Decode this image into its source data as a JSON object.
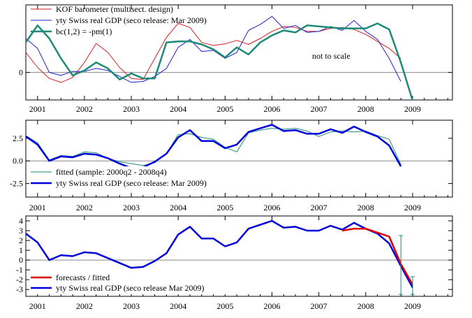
{
  "chart_data": [
    {
      "type": "line",
      "annotation": "not to scale",
      "x_ticks": [
        "2001",
        "2002",
        "2003",
        "2004",
        "2005",
        "2006",
        "2007",
        "2008",
        "2009"
      ],
      "y_ticks": [
        "0"
      ],
      "ylim": [
        -0.55,
        1.35
      ],
      "zero_line": true,
      "legend": {
        "placement": "top-left"
      },
      "colors": {
        "kof": "#d42020",
        "gdp": "#2222cc",
        "bc": "#1f8a78"
      },
      "series": [
        {
          "name": "KOF barometer (multisect. design)",
          "x": [
            2000.75,
            2001.0,
            2001.25,
            2001.5,
            2001.75,
            2002.0,
            2002.25,
            2002.5,
            2002.75,
            2003.0,
            2003.25,
            2003.5,
            2003.75,
            2004.0,
            2004.25,
            2004.5,
            2004.75,
            2005.0,
            2005.25,
            2005.5,
            2005.75,
            2006.0,
            2006.25,
            2006.5,
            2006.75,
            2007.0,
            2007.25,
            2007.5,
            2007.75,
            2008.0,
            2008.25,
            2008.5,
            2008.75
          ],
          "values": [
            0.4,
            0.1,
            -0.12,
            -0.2,
            -0.1,
            0.2,
            0.58,
            0.4,
            0.1,
            -0.12,
            -0.14,
            0.28,
            0.7,
            0.98,
            0.9,
            0.6,
            0.54,
            0.57,
            0.64,
            0.56,
            0.68,
            0.82,
            0.92,
            0.9,
            0.82,
            0.82,
            0.88,
            0.9,
            0.86,
            0.76,
            0.62,
            0.48,
            0.28
          ]
        },
        {
          "name": "yty Swiss real GDP (seco release: Mar 2009)",
          "x": [
            2000.75,
            2001.0,
            2001.25,
            2001.5,
            2001.75,
            2002.0,
            2002.25,
            2002.5,
            2002.75,
            2003.0,
            2003.25,
            2003.5,
            2003.75,
            2004.0,
            2004.25,
            2004.5,
            2004.75,
            2005.0,
            2005.25,
            2005.5,
            2005.75,
            2006.0,
            2006.25,
            2006.5,
            2006.75,
            2007.0,
            2007.25,
            2007.5,
            2007.75,
            2008.0,
            2008.25,
            2008.5,
            2008.75
          ],
          "values": [
            0.68,
            0.48,
            0.0,
            -0.06,
            0.02,
            0.02,
            0.08,
            0.04,
            -0.08,
            -0.2,
            -0.18,
            -0.08,
            0.08,
            0.5,
            0.66,
            0.42,
            0.44,
            0.28,
            0.4,
            0.84,
            0.96,
            1.12,
            0.88,
            0.94,
            0.8,
            0.82,
            0.92,
            0.84,
            1.04,
            0.82,
            0.66,
            0.28,
            -0.18
          ]
        },
        {
          "name": "bc(1,2) = -pm(1)",
          "x": [
            2000.75,
            2001.0,
            2001.25,
            2001.5,
            2001.75,
            2002.0,
            2002.25,
            2002.5,
            2002.75,
            2003.0,
            2003.25,
            2003.5,
            2003.75,
            2004.0,
            2004.25,
            2004.5,
            2004.75,
            2005.0,
            2005.25,
            2005.5,
            2005.75,
            2006.0,
            2006.25,
            2006.5,
            2006.75,
            2007.0,
            2007.25,
            2007.5,
            2007.75,
            2008.0,
            2008.25,
            2008.5,
            2008.75,
            2009.0
          ],
          "values": [
            0.6,
            0.94,
            0.68,
            0.28,
            -0.06,
            0.04,
            0.2,
            0.08,
            -0.14,
            -0.02,
            -0.12,
            -0.12,
            0.6,
            0.62,
            0.62,
            0.56,
            0.46,
            0.3,
            0.5,
            0.36,
            0.6,
            0.74,
            0.84,
            0.8,
            0.94,
            0.92,
            0.9,
            0.88,
            0.88,
            0.88,
            0.98,
            0.86,
            0.2,
            -0.56
          ]
        }
      ]
    },
    {
      "type": "line",
      "x_ticks": [
        "2001",
        "2002",
        "2003",
        "2004",
        "2005",
        "2006",
        "2007",
        "2008",
        "2009"
      ],
      "y_ticks": [
        "2.5",
        "0.0",
        "-2.5"
      ],
      "ylim": [
        -4.0,
        4.5
      ],
      "zero_line": true,
      "legend": {
        "placement": "bottom-left"
      },
      "colors": {
        "fitted": "#1f8a78",
        "gdp": "#0000dd"
      },
      "series": [
        {
          "name": "fitted (sample: 2000q2 - 2008q4)",
          "x": [
            2000.75,
            2001.0,
            2001.25,
            2001.5,
            2001.75,
            2002.0,
            2002.25,
            2002.5,
            2002.75,
            2003.0,
            2003.25,
            2003.5,
            2003.75,
            2004.0,
            2004.25,
            2004.5,
            2004.75,
            2005.0,
            2005.25,
            2005.5,
            2005.75,
            2006.0,
            2006.25,
            2006.5,
            2006.75,
            2007.0,
            2007.25,
            2007.5,
            2007.75,
            2008.0,
            2008.25,
            2008.5,
            2008.75
          ],
          "values": [
            2.8,
            2.0,
            0.1,
            0.6,
            0.5,
            1.0,
            0.9,
            0.3,
            -0.1,
            -0.3,
            -0.5,
            -0.2,
            0.8,
            2.9,
            3.0,
            2.6,
            2.4,
            1.5,
            1.0,
            3.1,
            3.4,
            3.6,
            3.5,
            3.6,
            3.3,
            2.7,
            3.2,
            3.3,
            3.2,
            3.3,
            2.8,
            2.4,
            -0.4
          ]
        },
        {
          "name": "yty Swiss real GDP (seco release: Mar 2009)",
          "x": [
            2000.75,
            2001.0,
            2001.25,
            2001.5,
            2001.75,
            2002.0,
            2002.25,
            2002.5,
            2002.75,
            2003.0,
            2003.25,
            2003.5,
            2003.75,
            2004.0,
            2004.25,
            2004.5,
            2004.75,
            2005.0,
            2005.25,
            2005.5,
            2005.75,
            2006.0,
            2006.25,
            2006.5,
            2006.75,
            2007.0,
            2007.25,
            2007.5,
            2007.75,
            2008.0,
            2008.25,
            2008.5,
            2008.75
          ],
          "values": [
            2.7,
            1.8,
            0.0,
            0.5,
            0.4,
            0.8,
            0.7,
            0.3,
            -0.3,
            -0.8,
            -0.7,
            -0.1,
            0.8,
            2.6,
            3.4,
            2.2,
            2.2,
            1.4,
            1.8,
            3.2,
            3.6,
            4.0,
            3.3,
            3.4,
            3.0,
            3.0,
            3.5,
            3.1,
            3.8,
            3.2,
            2.7,
            1.7,
            -0.6
          ]
        }
      ]
    },
    {
      "type": "line",
      "x_ticks": [
        "2001",
        "2002",
        "2003",
        "2004",
        "2005",
        "2006",
        "2007",
        "2008",
        "2009"
      ],
      "y_ticks": [
        "4",
        "3",
        "2",
        "1",
        "0",
        "-1",
        "-2",
        "-3"
      ],
      "ylim": [
        -3.7,
        4.5
      ],
      "zero_line": true,
      "legend": {
        "placement": "bottom-left"
      },
      "colors": {
        "forecast": "#dd0000",
        "gdp": "#0000dd",
        "band": "#1f8a78"
      },
      "error_bars": [
        {
          "x": 2008.75,
          "low": -3.5,
          "high": 2.5
        },
        {
          "x": 2009.0,
          "low": -3.5,
          "high": -1.7
        }
      ],
      "series": [
        {
          "name": "forecasts / fitted",
          "x": [
            2007.5,
            2007.75,
            2008.0,
            2008.25,
            2008.5,
            2008.75,
            2009.0
          ],
          "values": [
            3.0,
            3.2,
            3.2,
            2.8,
            2.4,
            -0.4,
            -2.5
          ]
        },
        {
          "name": "yty Swiss real GDP (seco release Mar 2009)",
          "x": [
            2000.75,
            2001.0,
            2001.25,
            2001.5,
            2001.75,
            2002.0,
            2002.25,
            2002.5,
            2002.75,
            2003.0,
            2003.25,
            2003.5,
            2003.75,
            2004.0,
            2004.25,
            2004.5,
            2004.75,
            2005.0,
            2005.25,
            2005.5,
            2005.75,
            2006.0,
            2006.25,
            2006.5,
            2006.75,
            2007.0,
            2007.25,
            2007.5,
            2007.75,
            2008.0,
            2008.25,
            2008.5,
            2008.75,
            2009.0
          ],
          "values": [
            2.7,
            1.8,
            0.0,
            0.5,
            0.4,
            0.8,
            0.7,
            0.2,
            -0.3,
            -0.8,
            -0.7,
            -0.1,
            0.7,
            2.6,
            3.4,
            2.2,
            2.2,
            1.4,
            1.8,
            3.2,
            3.6,
            4.0,
            3.3,
            3.4,
            3.0,
            3.0,
            3.5,
            3.1,
            3.8,
            3.2,
            2.7,
            1.7,
            -0.6,
            -2.8
          ]
        }
      ]
    }
  ]
}
